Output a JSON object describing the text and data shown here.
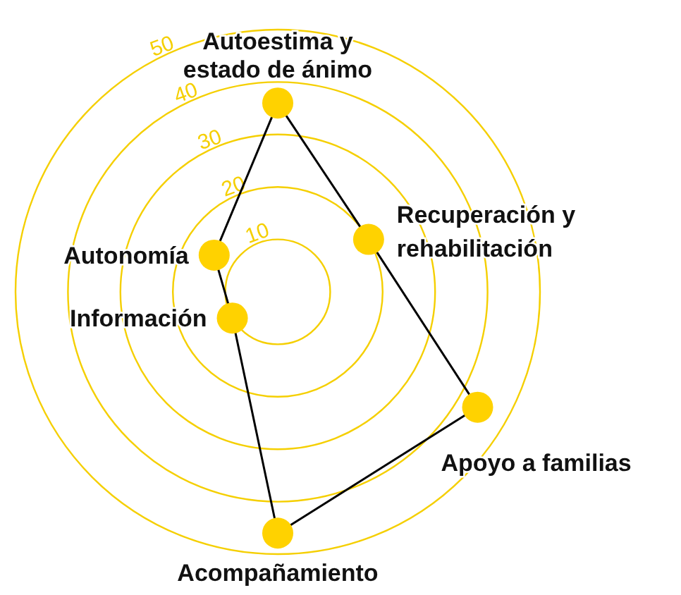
{
  "chart_data": {
    "type": "radar",
    "categories": [
      "Autoestima y estado de ánimo",
      "Recuperación y rehabilitación",
      "Apoyo a familias",
      "Acompañamiento",
      "Información",
      "Autonomía"
    ],
    "series": [
      {
        "color": "#000000",
        "colors": [
          "#ffd200",
          "#ffd200",
          "#ffd200",
          "#ffd200",
          "#ffd200",
          "#ffd200"
        ],
        "values": [
          36,
          20,
          44,
          46,
          10,
          14
        ]
      }
    ],
    "ylim": [
      0,
      50
    ],
    "yticks": [
      10,
      20,
      30,
      40,
      50
    ],
    "grid": true,
    "marker": "circle",
    "line_style": "solid"
  }
}
